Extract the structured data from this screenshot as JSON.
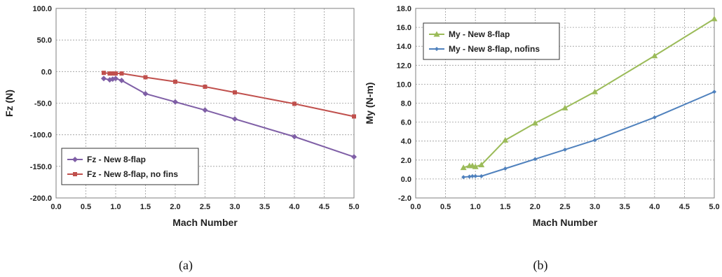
{
  "chart_data": [
    {
      "type": "line",
      "caption": "(a)",
      "xlabel": "Mach Number",
      "ylabel": "Fz (N)",
      "xlim": [
        0.0,
        5.0
      ],
      "ylim": [
        -200.0,
        100.0
      ],
      "xticks": [
        "0.0",
        "0.5",
        "1.0",
        "1.5",
        "2.0",
        "2.5",
        "3.0",
        "3.5",
        "4.0",
        "4.5",
        "5.0"
      ],
      "yticks": [
        "100.0",
        "50.0",
        "0.0",
        "-50.0",
        "-100.0",
        "-150.0",
        "-200.0"
      ],
      "grid": true,
      "legend_position": "bottom-left",
      "series": [
        {
          "name": "Fz - New 8-flap",
          "color": "#7f5fa6",
          "marker": "diamond",
          "x": [
            0.8,
            0.9,
            0.95,
            1.0,
            1.1,
            1.5,
            2.0,
            2.5,
            3.0,
            4.0,
            5.0
          ],
          "y": [
            -11,
            -13,
            -12,
            -11,
            -14,
            -35,
            -48,
            -61,
            -75,
            -103,
            -135
          ]
        },
        {
          "name": "Fz - New 8-flap, no fins",
          "color": "#c0504d",
          "marker": "square",
          "x": [
            0.8,
            0.9,
            0.95,
            1.0,
            1.1,
            1.5,
            2.0,
            2.5,
            3.0,
            4.0,
            5.0
          ],
          "y": [
            -2,
            -3,
            -3,
            -3,
            -3,
            -9,
            -16,
            -24,
            -33,
            -51,
            -71
          ]
        }
      ]
    },
    {
      "type": "line",
      "caption": "(b)",
      "xlabel": "Mach Number",
      "ylabel": "My (N-m)",
      "xlim": [
        0.0,
        5.0
      ],
      "ylim": [
        -2.0,
        18.0
      ],
      "xticks": [
        "0.0",
        "0.5",
        "1.0",
        "1.5",
        "2.0",
        "2.5",
        "3.0",
        "3.5",
        "4.0",
        "4.5",
        "5.0"
      ],
      "yticks": [
        "18.0",
        "16.0",
        "14.0",
        "12.0",
        "10.0",
        "8.0",
        "6.0",
        "4.0",
        "2.0",
        "0.0",
        "-2.0"
      ],
      "grid": true,
      "legend_position": "top-left",
      "series": [
        {
          "name": "My - New 8-flap",
          "color": "#9bbb59",
          "marker": "triangle",
          "x": [
            0.8,
            0.9,
            0.95,
            1.0,
            1.1,
            1.5,
            2.0,
            2.5,
            3.0,
            4.0,
            5.0
          ],
          "y": [
            1.2,
            1.4,
            1.4,
            1.3,
            1.5,
            4.1,
            5.9,
            7.5,
            9.2,
            13.0,
            16.9
          ]
        },
        {
          "name": "My - New 8-flap, nofins",
          "color": "#4f81bd",
          "marker": "diamond-small",
          "x": [
            0.8,
            0.9,
            0.95,
            1.0,
            1.1,
            1.5,
            2.0,
            2.5,
            3.0,
            4.0,
            5.0
          ],
          "y": [
            0.2,
            0.25,
            0.3,
            0.3,
            0.3,
            1.1,
            2.1,
            3.1,
            4.1,
            6.5,
            9.2
          ]
        }
      ]
    }
  ]
}
